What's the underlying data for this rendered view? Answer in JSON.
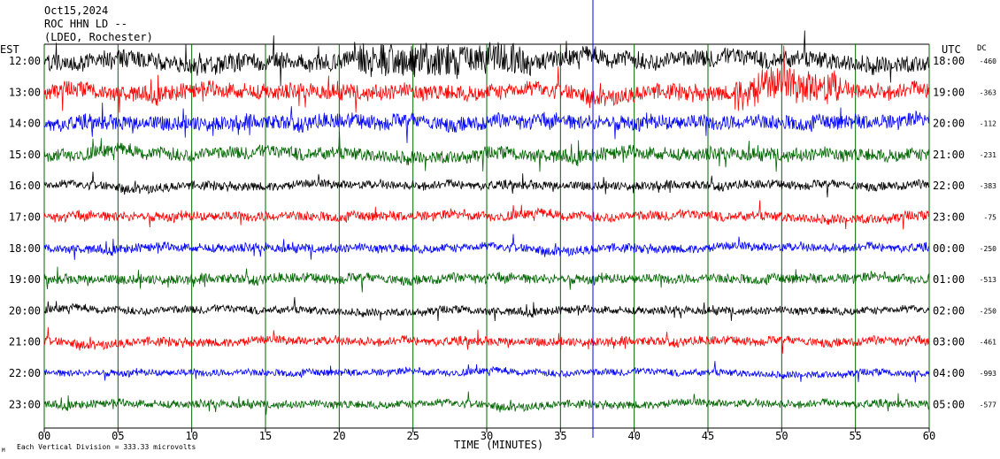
{
  "header": {
    "date": "Oct15,2024",
    "station": "ROC HHN LD --",
    "location": "(LDEO, Rochester)"
  },
  "left_axis_title": "EST",
  "right_axis_title": "UTC",
  "dc_title": "DC",
  "footer": {
    "x_axis_title": "TIME (MINUTES)",
    "scale_note": "Each Vertical Division =  333.33 microvolts",
    "corner_mark": "M"
  },
  "colors": {
    "cycle": [
      "#000000",
      "#ff0000",
      "#0000ff",
      "#006400"
    ],
    "grid": "#006400",
    "accent_line": "#0000ff"
  },
  "chart_data": {
    "type": "line",
    "title": "ROC HHN LD --",
    "xlabel": "TIME (MINUTES)",
    "ylabel": "",
    "xlim": [
      0,
      60
    ],
    "x_ticks": [
      "00",
      "05",
      "10",
      "15",
      "20",
      "25",
      "30",
      "35",
      "40",
      "45",
      "50",
      "55",
      "60"
    ],
    "grid": true,
    "traces": [
      {
        "est": "12:00",
        "utc": "18:00",
        "dc": "-460",
        "color": "#000000",
        "amplitude": 1.0
      },
      {
        "est": "13:00",
        "utc": "19:00",
        "dc": "-363",
        "color": "#ff0000",
        "amplitude": 0.9
      },
      {
        "est": "14:00",
        "utc": "20:00",
        "dc": "-112",
        "color": "#0000ff",
        "amplitude": 0.85
      },
      {
        "est": "15:00",
        "utc": "21:00",
        "dc": "-231",
        "color": "#006400",
        "amplitude": 0.75
      },
      {
        "est": "16:00",
        "utc": "22:00",
        "dc": "-383",
        "color": "#000000",
        "amplitude": 0.5
      },
      {
        "est": "17:00",
        "utc": "23:00",
        "dc": "-75",
        "color": "#ff0000",
        "amplitude": 0.55
      },
      {
        "est": "18:00",
        "utc": "00:00",
        "dc": "-250",
        "color": "#0000ff",
        "amplitude": 0.5
      },
      {
        "est": "19:00",
        "utc": "01:00",
        "dc": "-513",
        "color": "#006400",
        "amplitude": 0.55
      },
      {
        "est": "20:00",
        "utc": "02:00",
        "dc": "-250",
        "color": "#000000",
        "amplitude": 0.45
      },
      {
        "est": "21:00",
        "utc": "03:00",
        "dc": "-461",
        "color": "#ff0000",
        "amplitude": 0.5
      },
      {
        "est": "22:00",
        "utc": "04:00",
        "dc": "-993",
        "color": "#0000ff",
        "amplitude": 0.4
      },
      {
        "est": "23:00",
        "utc": "05:00",
        "dc": "-577",
        "color": "#006400",
        "amplitude": 0.45
      }
    ]
  }
}
